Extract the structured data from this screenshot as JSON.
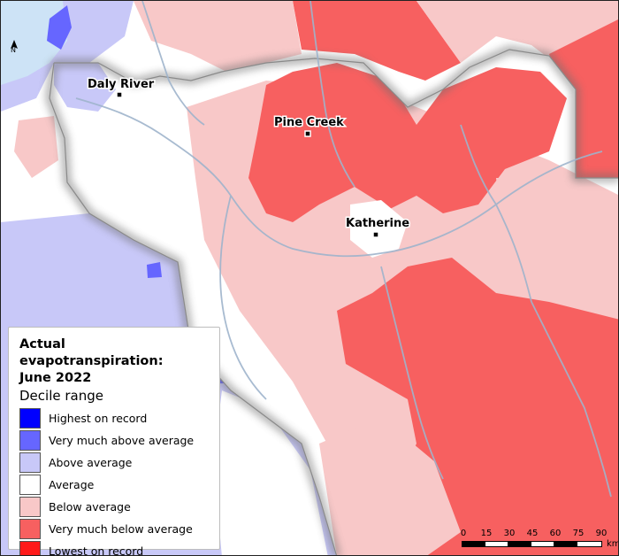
{
  "legend": {
    "title": "Actual evapotranspiration: June 2022",
    "title_line1": "Actual evapotranspiration:",
    "title_line2": "June 2022",
    "subtitle": "Decile range",
    "items": [
      {
        "label": "Highest on record",
        "color": "#0000ff"
      },
      {
        "label": "Very much above average",
        "color": "#6666ff"
      },
      {
        "label": "Above average",
        "color": "#c8c8f8"
      },
      {
        "label": "Average",
        "color": "#ffffff"
      },
      {
        "label": "Below average",
        "color": "#f8c8c8"
      },
      {
        "label": "Very much below average",
        "color": "#f76060"
      },
      {
        "label": "Lowest on record",
        "color": "#ff1a1a"
      }
    ]
  },
  "towns": [
    {
      "name": "Daly River"
    },
    {
      "name": "Pine Creek"
    },
    {
      "name": "Katherine"
    }
  ],
  "scale_bar": {
    "ticks": [
      "0",
      "15",
      "30",
      "45",
      "60",
      "75",
      "90"
    ],
    "unit": "km"
  },
  "north_arrow": {
    "label": "N",
    "icon": "north-arrow-icon"
  },
  "colors": {
    "sea": "#cde3f6",
    "river": "#9fb4cc",
    "boundary_shadow": "#6e6e6e"
  }
}
